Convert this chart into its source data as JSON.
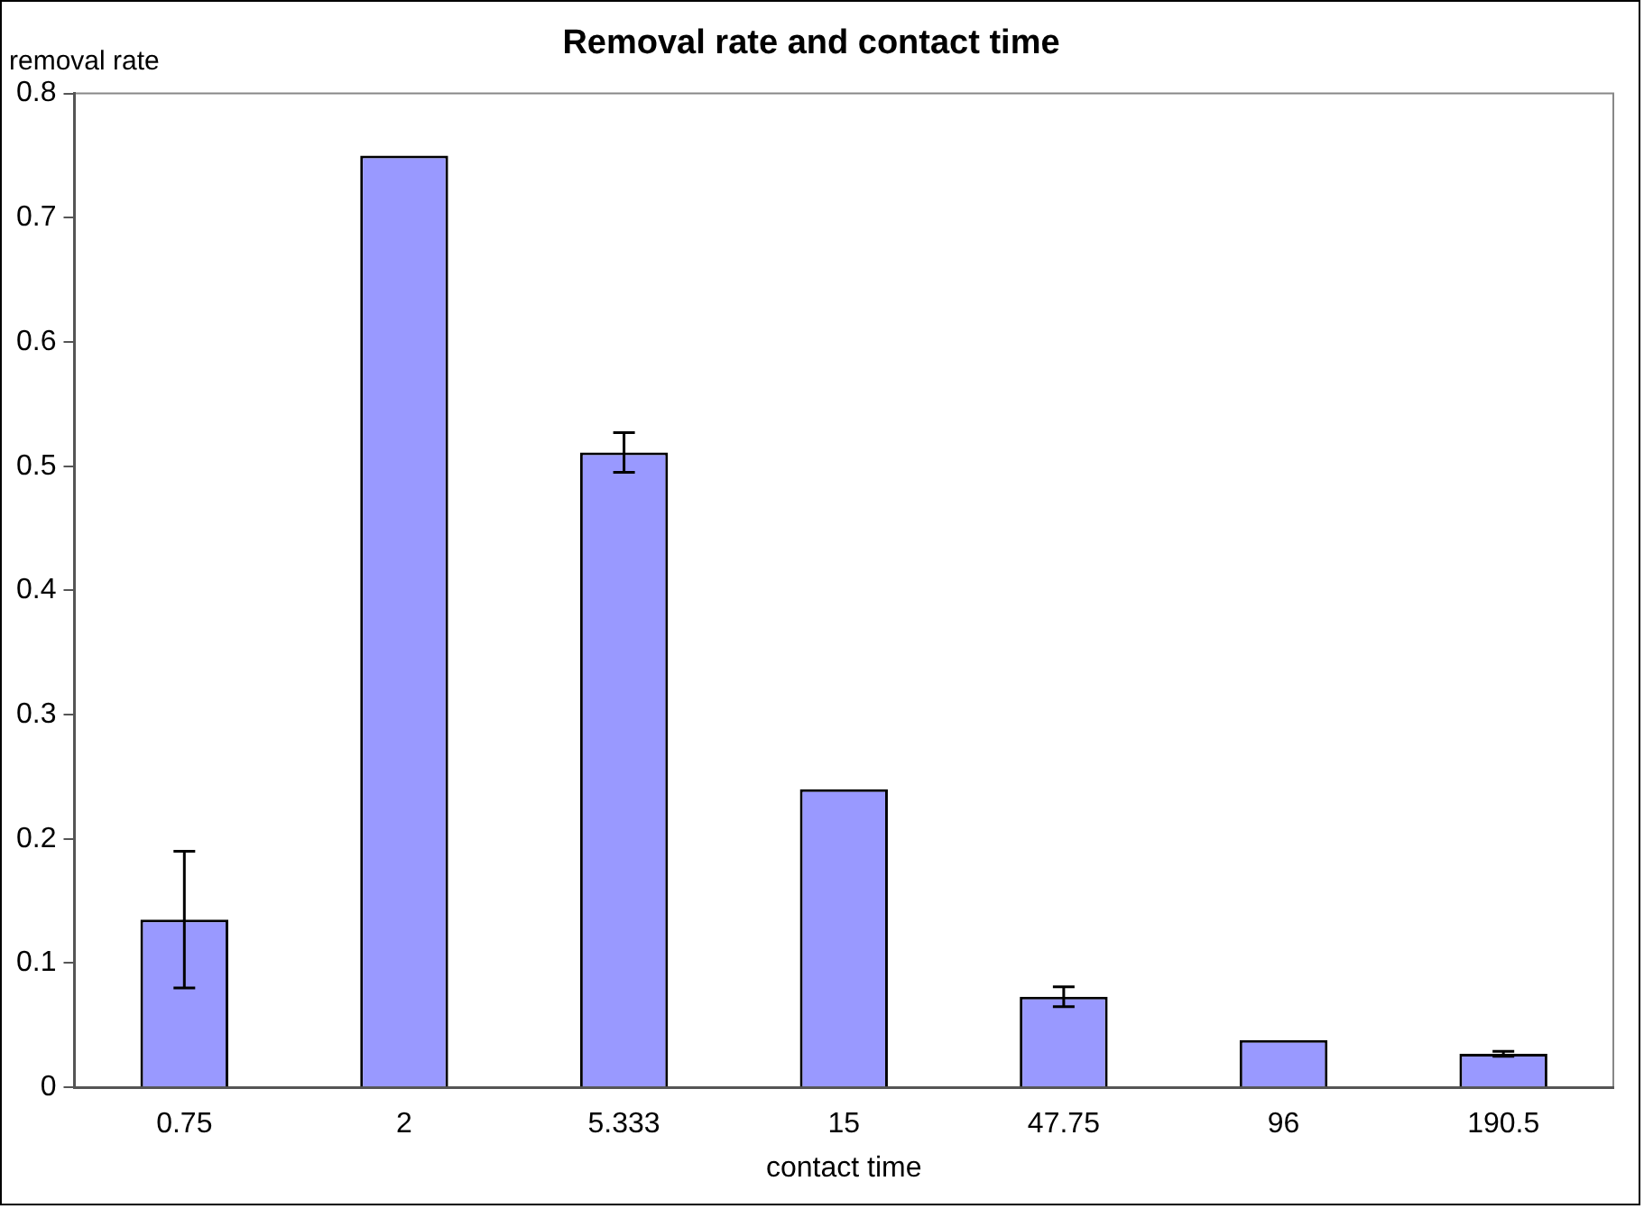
{
  "chart_data": {
    "type": "bar",
    "title": "Removal rate and contact time",
    "xlabel": "contact time",
    "ylabel": "removal rate",
    "categories": [
      "0.75",
      "2",
      "5.333",
      "15",
      "47.75",
      "96",
      "190.5"
    ],
    "values": [
      0.135,
      0.75,
      0.511,
      0.24,
      0.073,
      0.038,
      0.027
    ],
    "errors": [
      0.055,
      null,
      0.016,
      null,
      0.008,
      null,
      0.002
    ],
    "color": "#9999ff",
    "ylim": [
      0,
      0.8
    ],
    "yticks": [
      0,
      0.1,
      0.2,
      0.3,
      0.4,
      0.5,
      0.6,
      0.7,
      0.8
    ],
    "grid": false,
    "legend": false
  }
}
